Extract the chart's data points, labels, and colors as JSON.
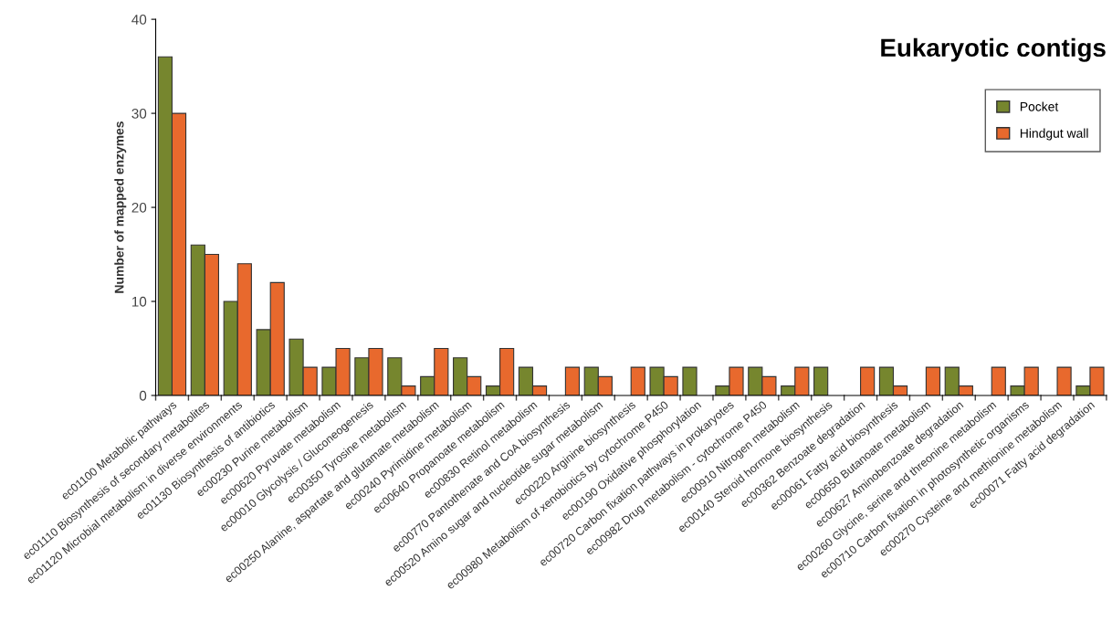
{
  "chart_data": {
    "type": "bar",
    "title": "Eukaryotic contigs",
    "ylabel": "Number of mapped enzymes",
    "categories": [
      "ec01100 Metabolic pathways",
      "ec01110 Biosynthesis of secondary metabolites",
      "ec01120 Microbial metabolism in diverse environments",
      "ec01130 Biosynthesis of antibiotics",
      "ec00230 Purine metabolism",
      "ec00620 Pyruvate metabolism",
      "ec00010 Glycolysis / Gluconeogenesis",
      "ec00350 Tyrosine metabolism",
      "ec00250 Alanine, aspartate and glutamate metabolism",
      "ec00240 Pyrimidine metabolism",
      "ec00640 Propanoate metabolism",
      "ec00830 Retinol metabolism",
      "ec00770 Pantothenate and CoA biosynthesis",
      "ec00520 Amino sugar and nucleotide sugar metabolism",
      "ec00220 Arginine biosynthesis",
      "ec00980 Metabolism of xenobiotics by cytochrome P450",
      "ec00190 Oxidative phosphorylation",
      "ec00720 Carbon fixation pathways in prokaryotes",
      "ec00982 Drug metabolism - cytochrome P450",
      "ec00910 Nitrogen metabolism",
      "ec00140 Steroid hormone biosynthesis",
      "ec00362 Benzoate degradation",
      "ec00061 Fatty acid biosynthesis",
      "ec00650 Butanoate metabolism",
      "ec00627 Aminobenzoate degradation",
      "ec00260 Glycine, serine and threonine metabolism",
      "ec00710 Carbon fixation in photosynthetic organisms",
      "ec00270 Cysteine and methionine metabolism",
      "ec00071 Fatty acid degradation"
    ],
    "series": [
      {
        "name": "Pocket",
        "color": "#76862e",
        "values": [
          36,
          16,
          10,
          7,
          6,
          3,
          4,
          4,
          2,
          4,
          1,
          3,
          0,
          3,
          0,
          3,
          3,
          1,
          3,
          1,
          3,
          0,
          3,
          0,
          3,
          0,
          1,
          0,
          1
        ]
      },
      {
        "name": "Hindgut wall",
        "color": "#e8692d",
        "values": [
          30,
          15,
          14,
          12,
          3,
          5,
          5,
          1,
          5,
          2,
          5,
          1,
          3,
          2,
          3,
          2,
          0,
          3,
          2,
          3,
          0,
          3,
          1,
          3,
          1,
          3,
          3,
          3,
          3
        ]
      }
    ],
    "ylim": [
      0,
      40
    ],
    "yticks": [
      0,
      10,
      20,
      30,
      40
    ],
    "grid": false,
    "legend": "top right"
  }
}
